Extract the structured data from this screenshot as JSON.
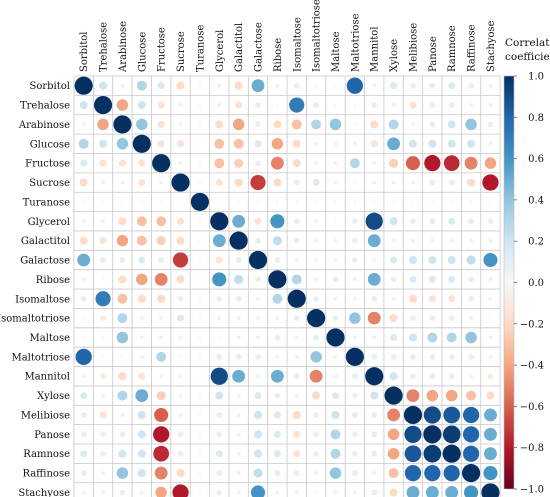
{
  "chart_data": {
    "type": "heatmap",
    "style": "corrplot-circles",
    "variables": [
      "Sorbitol",
      "Trehalose",
      "Arabinose",
      "Glucose",
      "Fructose",
      "Sucrose",
      "Turanose",
      "Glycerol",
      "Galactitol",
      "Galactose",
      "Ribose",
      "Isomaltose",
      "Isomaltotriose",
      "Maltose",
      "Maltotriose",
      "Mannitol",
      "Xylose",
      "Melibiose",
      "Panose",
      "Ramnose",
      "Raffinose",
      "Stachyose"
    ],
    "matrix": [
      [
        1.0,
        0.2,
        0.05,
        0.3,
        0.15,
        -0.2,
        0.0,
        0.05,
        -0.2,
        0.5,
        0.05,
        0.1,
        0.0,
        0.0,
        0.8,
        0.05,
        0.15,
        0.1,
        0.1,
        0.15,
        0.1,
        0.05
      ],
      [
        0.2,
        1.0,
        -0.4,
        0.2,
        -0.15,
        -0.05,
        0.0,
        0.05,
        -0.15,
        0.1,
        0.0,
        0.7,
        -0.1,
        0.0,
        0.0,
        -0.1,
        0.05,
        -0.15,
        -0.1,
        -0.1,
        -0.05,
        -0.05
      ],
      [
        0.05,
        -0.4,
        1.0,
        0.4,
        -0.15,
        -0.05,
        0.0,
        -0.2,
        -0.4,
        0.1,
        -0.2,
        -0.3,
        0.3,
        0.4,
        0.0,
        -0.2,
        0.3,
        0.05,
        0.1,
        0.2,
        0.4,
        0.1
      ],
      [
        0.3,
        0.2,
        0.4,
        1.0,
        -0.15,
        -0.15,
        0.0,
        -0.3,
        -0.3,
        0.15,
        -0.4,
        -0.2,
        0.05,
        0.05,
        0.05,
        -0.15,
        0.5,
        0.2,
        0.2,
        0.2,
        0.2,
        0.05
      ],
      [
        0.15,
        -0.15,
        -0.15,
        -0.15,
        1.0,
        0.05,
        0.0,
        -0.3,
        -0.25,
        0.1,
        -0.5,
        -0.2,
        -0.05,
        0.05,
        0.3,
        -0.05,
        -0.25,
        -0.6,
        -0.8,
        -0.75,
        -0.5,
        -0.4
      ],
      [
        -0.2,
        -0.05,
        -0.05,
        -0.15,
        0.05,
        1.0,
        0.0,
        -0.15,
        -0.2,
        -0.7,
        -0.2,
        -0.1,
        0.15,
        0.05,
        0.0,
        0.05,
        -0.05,
        -0.05,
        -0.1,
        -0.1,
        -0.2,
        -0.8
      ],
      [
        0.0,
        0.0,
        0.0,
        0.0,
        0.0,
        0.0,
        1.0,
        0.0,
        0.0,
        0.0,
        0.0,
        0.0,
        0.0,
        0.0,
        0.0,
        0.0,
        0.0,
        0.0,
        0.0,
        0.0,
        0.0,
        0.0
      ],
      [
        0.05,
        0.05,
        -0.2,
        -0.3,
        -0.3,
        -0.15,
        0.0,
        1.0,
        0.5,
        -0.15,
        0.6,
        0.1,
        0.05,
        0.0,
        0.1,
        0.9,
        0.2,
        0.1,
        0.1,
        0.15,
        0.1,
        -0.1
      ],
      [
        -0.2,
        -0.15,
        -0.4,
        -0.3,
        -0.25,
        -0.2,
        0.0,
        0.5,
        1.0,
        0.1,
        0.25,
        0.1,
        0.05,
        0.05,
        0.1,
        0.5,
        0.05,
        0.05,
        0.05,
        0.05,
        0.05,
        -0.05
      ],
      [
        0.5,
        0.1,
        0.1,
        0.15,
        0.1,
        -0.7,
        0.0,
        -0.15,
        0.1,
        1.0,
        0.1,
        0.05,
        0.05,
        0.05,
        0.1,
        0.05,
        0.15,
        0.2,
        0.2,
        0.2,
        0.25,
        0.6
      ],
      [
        0.05,
        0.0,
        -0.2,
        -0.4,
        -0.5,
        -0.2,
        0.0,
        0.6,
        0.25,
        0.1,
        1.0,
        0.3,
        0.05,
        0.1,
        -0.05,
        0.5,
        0.1,
        0.15,
        0.15,
        0.15,
        0.1,
        0.05
      ],
      [
        0.1,
        0.7,
        -0.3,
        -0.2,
        -0.2,
        -0.1,
        0.0,
        0.1,
        0.1,
        0.05,
        0.3,
        1.0,
        0.1,
        0.05,
        0.05,
        0.1,
        -0.05,
        -0.2,
        -0.15,
        -0.15,
        -0.1,
        -0.05
      ],
      [
        0.0,
        -0.1,
        0.3,
        0.05,
        -0.05,
        0.15,
        0.0,
        0.05,
        0.05,
        0.05,
        0.05,
        0.1,
        1.0,
        0.1,
        0.4,
        -0.5,
        -0.2,
        -0.1,
        -0.1,
        -0.1,
        -0.05,
        0.0
      ],
      [
        0.0,
        0.0,
        0.4,
        0.05,
        0.05,
        0.05,
        0.0,
        0.0,
        0.05,
        0.05,
        0.1,
        0.05,
        0.1,
        1.0,
        0.05,
        0.05,
        0.15,
        0.2,
        0.3,
        0.3,
        0.4,
        0.05
      ],
      [
        0.8,
        0.0,
        0.0,
        0.05,
        0.3,
        0.0,
        0.0,
        0.1,
        0.1,
        0.1,
        -0.05,
        0.05,
        0.4,
        0.05,
        1.0,
        0.1,
        0.1,
        0.1,
        0.1,
        0.1,
        0.1,
        0.05
      ],
      [
        0.05,
        -0.1,
        -0.2,
        -0.15,
        -0.05,
        0.05,
        0.0,
        0.9,
        0.5,
        0.05,
        0.5,
        0.1,
        -0.5,
        0.05,
        0.1,
        1.0,
        0.2,
        0.1,
        0.1,
        0.1,
        0.05,
        -0.1
      ],
      [
        0.15,
        0.05,
        0.3,
        0.5,
        -0.25,
        -0.05,
        0.0,
        0.2,
        0.05,
        0.15,
        0.1,
        -0.05,
        -0.2,
        0.15,
        0.1,
        0.2,
        1.0,
        -0.5,
        -0.4,
        -0.4,
        -0.3,
        -0.2
      ],
      [
        0.1,
        -0.15,
        0.05,
        0.2,
        -0.6,
        -0.05,
        0.0,
        0.1,
        0.05,
        0.2,
        0.15,
        -0.2,
        -0.1,
        0.2,
        0.1,
        0.1,
        -0.5,
        1.0,
        0.9,
        0.85,
        0.8,
        0.5
      ],
      [
        0.1,
        -0.1,
        0.1,
        0.2,
        -0.8,
        -0.1,
        0.0,
        0.1,
        0.05,
        0.2,
        0.15,
        -0.15,
        -0.1,
        0.3,
        0.1,
        0.1,
        -0.4,
        0.9,
        1.0,
        0.95,
        0.8,
        0.5
      ],
      [
        0.15,
        -0.1,
        0.2,
        0.2,
        -0.75,
        -0.1,
        0.0,
        0.15,
        0.05,
        0.2,
        0.15,
        -0.15,
        -0.1,
        0.3,
        0.1,
        0.1,
        -0.4,
        0.85,
        0.95,
        1.0,
        0.8,
        0.5
      ],
      [
        0.1,
        -0.05,
        0.4,
        0.2,
        -0.5,
        -0.2,
        0.0,
        0.1,
        0.05,
        0.25,
        0.1,
        -0.1,
        -0.05,
        0.4,
        0.1,
        0.05,
        -0.3,
        0.8,
        0.8,
        0.8,
        1.0,
        0.6
      ],
      [
        0.05,
        -0.05,
        0.1,
        0.05,
        -0.4,
        -0.8,
        0.0,
        -0.1,
        -0.05,
        0.6,
        0.05,
        -0.05,
        0.0,
        0.05,
        0.05,
        -0.1,
        -0.2,
        0.5,
        0.5,
        0.5,
        0.6,
        1.0
      ]
    ],
    "value_range": [
      -1,
      1
    ],
    "colorbar": {
      "title_line1": "Correlation",
      "title_line2": "coefficient",
      "ticks": [
        1.0,
        0.8,
        0.6,
        0.4,
        0.2,
        0.0,
        -0.2,
        -0.4,
        -0.6,
        -0.8,
        -1.0
      ],
      "tick_labels": [
        "1.0",
        "0.8",
        "0.6",
        "0.4",
        "0.2",
        "0.0",
        "−0.2",
        "−0.4",
        "−0.6",
        "−0.8",
        "−1.0"
      ]
    },
    "palette": {
      "strong_negative": "#67001f",
      "negative": "#d6604d",
      "neutral": "#f7f7f7",
      "positive": "#4393c3",
      "strong_positive": "#053061"
    },
    "grid": true,
    "legend": "right"
  }
}
